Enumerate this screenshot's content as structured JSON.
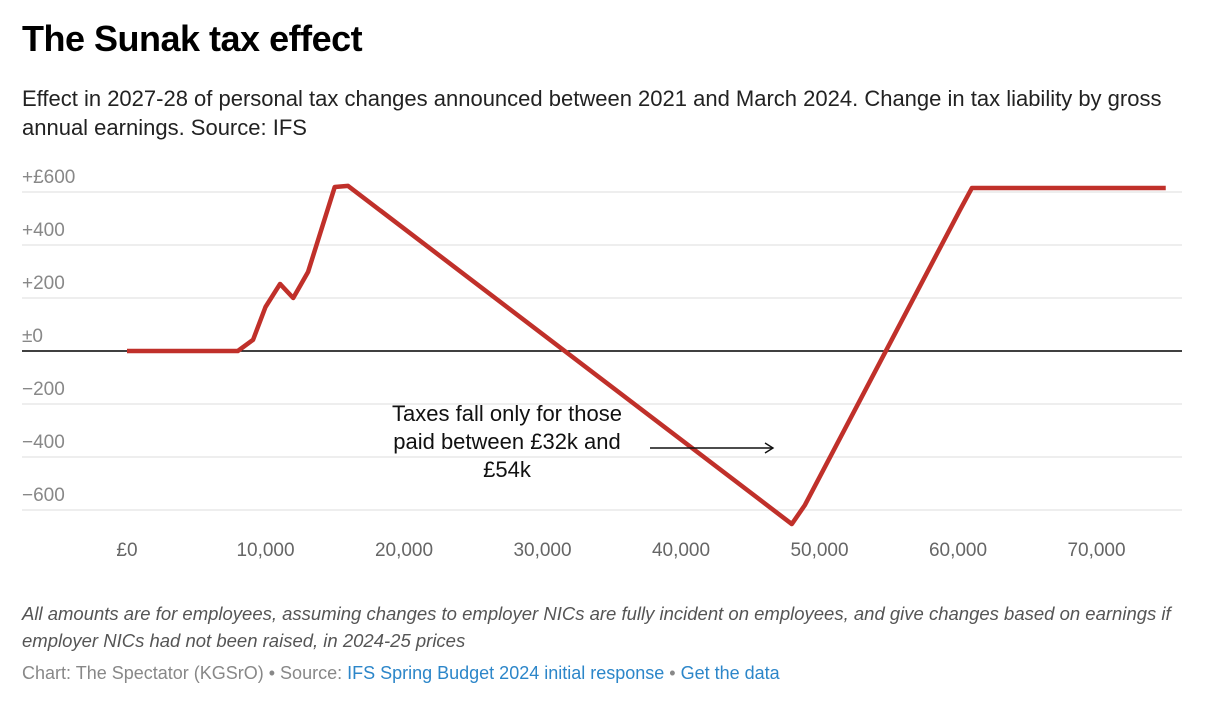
{
  "chart_data": {
    "type": "line",
    "title": "The Sunak tax effect",
    "subtitle": "Effect in 2027-28 of personal tax changes announced between 2021 and March 2024. Change in tax liability by gross annual earnings. Source: IFS",
    "xlabel": "",
    "ylabel": "",
    "xlim": [
      0,
      76000
    ],
    "ylim": [
      -660,
      640
    ],
    "x_ticks": [
      {
        "v": 0,
        "label": "£0"
      },
      {
        "v": 10000,
        "label": "10,000"
      },
      {
        "v": 20000,
        "label": "20,000"
      },
      {
        "v": 30000,
        "label": "30,000"
      },
      {
        "v": 40000,
        "label": "40,000"
      },
      {
        "v": 50000,
        "label": "50,000"
      },
      {
        "v": 60000,
        "label": "60,000"
      },
      {
        "v": 70000,
        "label": "70,000"
      }
    ],
    "y_ticks": [
      {
        "v": 600,
        "label": "+£600"
      },
      {
        "v": 400,
        "label": "+400"
      },
      {
        "v": 200,
        "label": "+200"
      },
      {
        "v": 0,
        "label": "±0"
      },
      {
        "v": -200,
        "label": "−200"
      },
      {
        "v": -400,
        "label": "−400"
      },
      {
        "v": -600,
        "label": "−600"
      }
    ],
    "grid": true,
    "series": [
      {
        "name": "Change in tax liability",
        "color": "#c0302a",
        "x": [
          0,
          8000,
          9100,
          10000,
          11050,
          12000,
          13070,
          15000,
          15960,
          48000,
          48950,
          60140,
          61000,
          75000
        ],
        "y": [
          0,
          0,
          42,
          166,
          253,
          200,
          298,
          619,
          623,
          -653,
          -581,
          532,
          615,
          615
        ]
      }
    ],
    "annotation": {
      "lines": [
        "Taxes fall only for those",
        "paid between £32k and",
        "£54k"
      ],
      "arrow_from_x": 36000,
      "arrow_to_x": 45000,
      "arrow_y": -370
    }
  },
  "notes": "All amounts are for employees, assuming changes to employer NICs are fully incident on employees, and give changes based on earnings if employer NICs had not been raised, in 2024-25 prices",
  "footer": {
    "credit": "Chart: The Spectator (KGSrO) • Source: ",
    "source_link": "IFS Spring Budget 2024 initial response",
    "sep": " • ",
    "data_link": "Get the data"
  }
}
